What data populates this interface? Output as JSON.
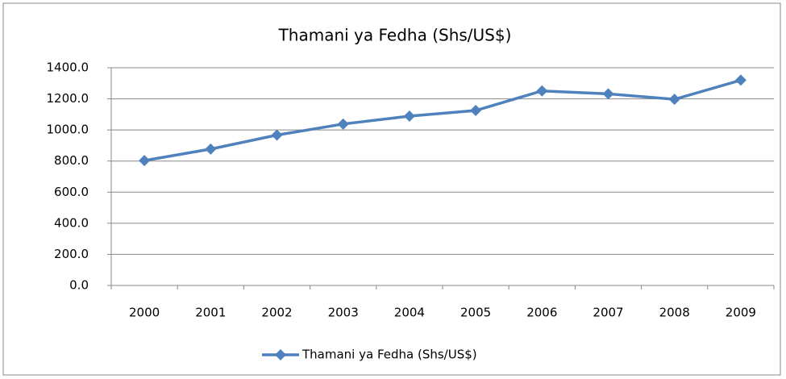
{
  "chart_data": {
    "type": "line",
    "title": "Thamani ya Fedha (Shs/US$)",
    "categories": [
      "2000",
      "2001",
      "2002",
      "2003",
      "2004",
      "2005",
      "2006",
      "2007",
      "2008",
      "2009"
    ],
    "series": [
      {
        "name": "Thamani ya Fedha (Shs/US$)",
        "color": "#4f81bd",
        "values": [
          803,
          877,
          967,
          1038,
          1089,
          1125,
          1251,
          1232,
          1197,
          1320
        ]
      }
    ],
    "ylim": [
      0,
      1400
    ],
    "yticks": [
      {
        "value": 0,
        "label": "0.0"
      },
      {
        "value": 200,
        "label": "200.0"
      },
      {
        "value": 400,
        "label": "400.0"
      },
      {
        "value": 600,
        "label": "600.0"
      },
      {
        "value": 800,
        "label": "800.0"
      },
      {
        "value": 1000,
        "label": "1000.0"
      },
      {
        "value": 1200,
        "label": "1200.0"
      },
      {
        "value": 1400,
        "label": "1400.0"
      }
    ],
    "grid": true,
    "legend": "bottom"
  }
}
